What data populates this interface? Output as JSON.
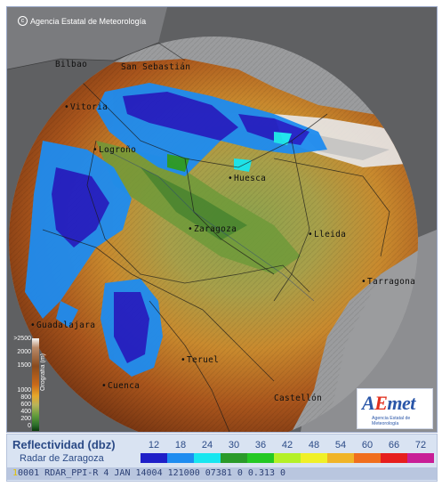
{
  "header": {
    "copyright_symbol": "c",
    "agency": "Agencia Estatal de Meteorología"
  },
  "cities": [
    {
      "name": "Bilbao",
      "dot": false
    },
    {
      "name": "San Sebastián",
      "dot": false
    },
    {
      "name": "Vitoria",
      "dot": true
    },
    {
      "name": "Logroño",
      "dot": true
    },
    {
      "name": "Huesca",
      "dot": true
    },
    {
      "name": "Zaragoza",
      "dot": true
    },
    {
      "name": "Lleida",
      "dot": true
    },
    {
      "name": "Tarragona",
      "dot": true
    },
    {
      "name": "Guadalajara",
      "dot": true
    },
    {
      "name": "Teruel",
      "dot": true
    },
    {
      "name": "Cuenca",
      "dot": true
    },
    {
      "name": "Castellón",
      "dot": false
    }
  ],
  "elevation_legend": {
    "label": "Orografía (m)",
    "ticks": [
      ">2500",
      "2000",
      "1500",
      "1000",
      "800",
      "600",
      "400",
      "200",
      "0"
    ]
  },
  "logo": {
    "word_a": "A",
    "word_e": "E",
    "word_rest": "met",
    "subtitle": "Agencia Estatal de Meteorología"
  },
  "footer": {
    "title": "Reflectividad (dbz)",
    "radar_name": "Radar de Zaragoza",
    "scale": [
      {
        "label": "12",
        "color": "#1f1fc8"
      },
      {
        "label": "18",
        "color": "#1e8cf0"
      },
      {
        "label": "24",
        "color": "#18e6f0"
      },
      {
        "label": "30",
        "color": "#2a9a2a"
      },
      {
        "label": "36",
        "color": "#24c824"
      },
      {
        "label": "42",
        "color": "#b4f028"
      },
      {
        "label": "48",
        "color": "#f0f028"
      },
      {
        "label": "54",
        "color": "#f0b428"
      },
      {
        "label": "60",
        "color": "#f06e1e"
      },
      {
        "label": "66",
        "color": "#e61e1e"
      },
      {
        "label": "72",
        "color": "#c81e96"
      }
    ],
    "product_line_lead": "1",
    "product_line": "0001 RDAR_PPI-R    4 JAN 14004 121000 07381 0 0.313 0"
  }
}
